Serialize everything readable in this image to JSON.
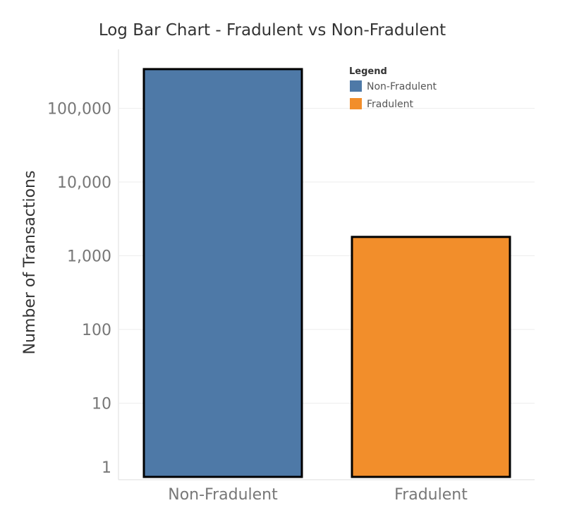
{
  "chart_data": {
    "type": "bar",
    "title": "Log Bar Chart - Fradulent vs Non-Fradulent",
    "xlabel": "",
    "ylabel": "Number of Transactions",
    "y_scale": "log",
    "ylim": [
      1,
      320000
    ],
    "yticks": [
      1,
      10,
      100,
      1000,
      10000,
      100000
    ],
    "ytick_labels": [
      "1",
      "10",
      "100",
      "1,000",
      "10,000",
      "100,000"
    ],
    "categories": [
      "Non-Fradulent",
      "Fradulent"
    ],
    "values": [
      340000,
      1800
    ],
    "colors": [
      "#4e79a7",
      "#f28e2b"
    ],
    "grid": true,
    "legend": {
      "title": "Legend",
      "position": "top-right",
      "items": [
        {
          "label": "Non-Fradulent",
          "color": "#4e79a7"
        },
        {
          "label": "Fradulent",
          "color": "#f28e2b"
        }
      ]
    }
  }
}
